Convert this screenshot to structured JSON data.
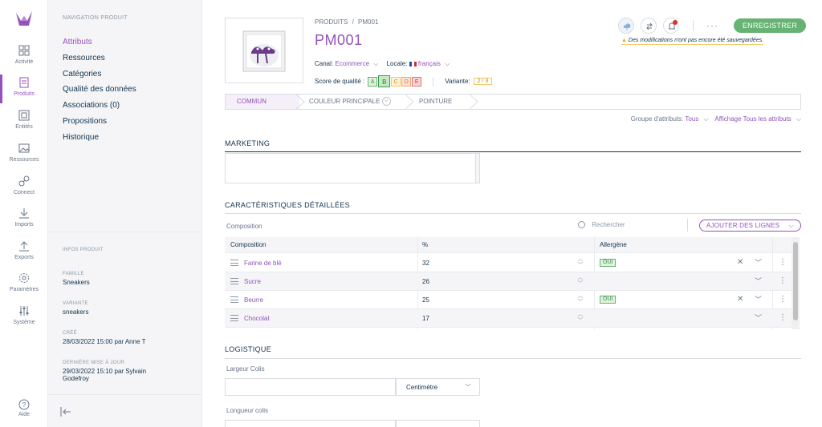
{
  "sidebar": {
    "items": [
      {
        "label": "Activité",
        "icon": "dashboard-icon"
      },
      {
        "label": "Produits",
        "icon": "product-icon",
        "active": true
      },
      {
        "label": "Entités",
        "icon": "entity-icon"
      },
      {
        "label": "Ressources",
        "icon": "image-icon"
      },
      {
        "label": "Connect",
        "icon": "plug-icon"
      },
      {
        "label": "Imports",
        "icon": "import-icon"
      },
      {
        "label": "Exports",
        "icon": "export-icon"
      },
      {
        "label": "Paramètres",
        "icon": "settings-icon"
      },
      {
        "label": "Système",
        "icon": "sliders-icon"
      }
    ],
    "help": "Aide"
  },
  "nav": {
    "title": "NAVIGATION PRODUIT",
    "links": [
      "Attributs",
      "Ressources",
      "Catégories",
      "Qualité des données",
      "Associations (0)",
      "Propositions",
      "Historique"
    ],
    "info_title": "INFOS PRODUIT",
    "family_label": "FAMILLE",
    "family_value": "Sneakers",
    "variant_label": "VARIANTE",
    "variant_value": "sneakers",
    "created_label": "CRÉÉ",
    "created_value": "28/03/2022 15:00 par Anne T",
    "updated_label": "DERNIÈRE MISE À JOUR",
    "updated_value_1": "29/03/2022 15:10 par Sylvain",
    "updated_value_2": "Godefroy"
  },
  "header": {
    "breadcrumb_1": "PRODUITS",
    "breadcrumb_sep": "/",
    "breadcrumb_2": "PM001",
    "title": "PM001",
    "channel_label": "Canal:",
    "channel_value": "Ecommerce",
    "locale_label": "Locale:",
    "locale_value": "français",
    "score_label": "Score de qualité :",
    "grades": [
      "A",
      "B",
      "C",
      "D",
      "E"
    ],
    "selected_grade": "B",
    "variant_label": "Variante:",
    "variant_value": "2 / 3",
    "save_label": "ENREGISTRER",
    "warning": "Des modifications n'ont pas encore été sauvegardées.",
    "more": "···"
  },
  "tabs": [
    {
      "label": "COMMUN",
      "active": true
    },
    {
      "label": "COULEUR PRINCIPALE"
    },
    {
      "label": "POINTURE"
    }
  ],
  "filters": {
    "group_label": "Groupe d'attributs:",
    "group_value": "Tous",
    "display_label": "Affichage",
    "display_value": "Tous les attributs"
  },
  "sections": {
    "marketing": "MARKETING",
    "characteristics": "CARACTÉRISTIQUES DÉTAILLÉES",
    "logistics": "LOGISTIQUE"
  },
  "composition": {
    "label": "Composition",
    "search_placeholder": "Rechercher",
    "add_lines": "AJOUTER DES LIGNES",
    "columns": [
      "Composition",
      "%",
      "Allergène"
    ],
    "rows": [
      {
        "name": "Farine de blé",
        "pct": "32",
        "allergen": "OUI"
      },
      {
        "name": "Sucre",
        "pct": "26",
        "allergen": ""
      },
      {
        "name": "Beurre",
        "pct": "25",
        "allergen": "OUI"
      },
      {
        "name": "Chocolat",
        "pct": "17",
        "allergen": ""
      }
    ]
  },
  "logistics": {
    "width_label": "Largeur Colis",
    "width_unit": "Centimètre",
    "length_label": "Longueur colis"
  },
  "colors": {
    "accent": "#9452ba",
    "success": "#67b373",
    "text": "#11324d"
  }
}
